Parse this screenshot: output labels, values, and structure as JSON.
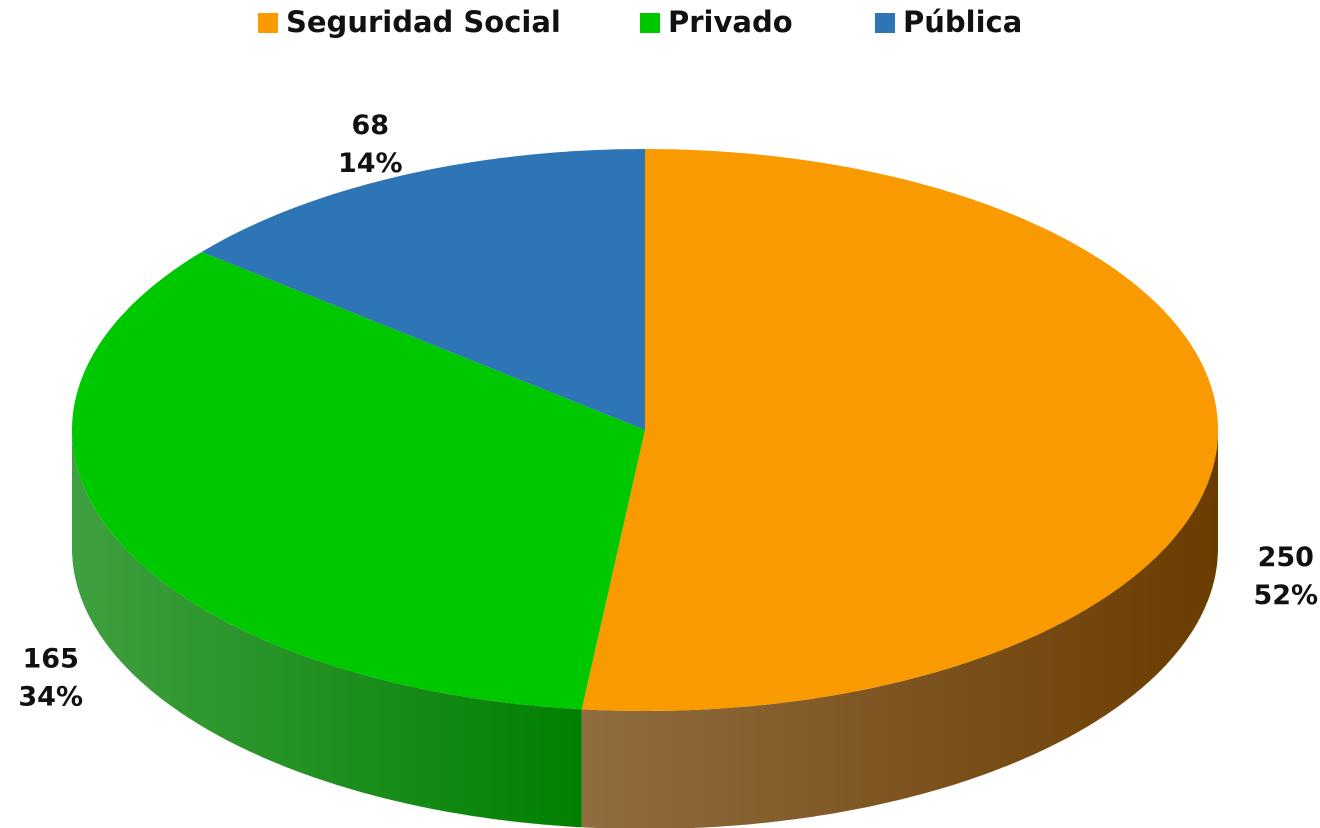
{
  "chart_data": {
    "type": "pie3d",
    "categories": [
      "Seguridad Social",
      "Privado",
      "Pública"
    ],
    "values": [
      250,
      165,
      68
    ],
    "percent_labels": [
      "52%",
      "34%",
      "14%"
    ],
    "colors": [
      "#f99a00",
      "#00c800",
      "#2e75b6"
    ],
    "side_colors": [
      "#6b3c00",
      "#008000",
      "#1d4c78"
    ],
    "legend": "top"
  }
}
